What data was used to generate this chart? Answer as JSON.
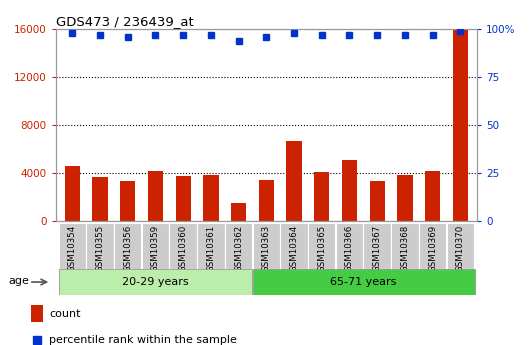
{
  "title": "GDS473 / 236439_at",
  "categories": [
    "GSM10354",
    "GSM10355",
    "GSM10356",
    "GSM10359",
    "GSM10360",
    "GSM10361",
    "GSM10362",
    "GSM10363",
    "GSM10364",
    "GSM10365",
    "GSM10366",
    "GSM10367",
    "GSM10368",
    "GSM10369",
    "GSM10370"
  ],
  "counts": [
    4600,
    3700,
    3300,
    4200,
    3750,
    3800,
    1500,
    3400,
    6700,
    4100,
    5100,
    3300,
    3850,
    4200,
    16000
  ],
  "percentile_ranks": [
    98,
    97,
    96,
    97,
    97,
    97,
    94,
    96,
    98,
    97,
    97,
    97,
    97,
    97,
    99
  ],
  "group1_label": "20-29 years",
  "group1_count": 7,
  "group2_label": "65-71 years",
  "group2_count": 8,
  "age_label": "age",
  "bar_color": "#cc2200",
  "dot_color": "#0033cc",
  "group1_bg": "#bbeeaa",
  "group2_bg": "#44cc44",
  "tick_bg": "#cccccc",
  "legend_count_label": "count",
  "legend_pct_label": "percentile rank within the sample",
  "ylim_left": [
    0,
    16000
  ],
  "ylim_right": [
    0,
    100
  ],
  "yticks_left": [
    0,
    4000,
    8000,
    12000,
    16000
  ],
  "yticks_right": [
    0,
    25,
    50,
    75,
    100
  ],
  "right_tick_labels": [
    "0",
    "25",
    "50",
    "75",
    "100%"
  ]
}
